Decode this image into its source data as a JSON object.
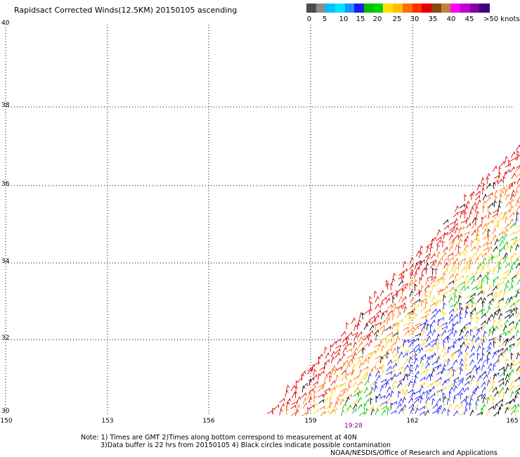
{
  "title": "Rapidsact Corrected Winds(12.5KM) 20150105 ascending",
  "legend": {
    "colors": [
      "#4d4d4d",
      "#8c8c8c",
      "#00bfff",
      "#00e5ff",
      "#1e90ff",
      "#1c1cf0",
      "#00c000",
      "#00d200",
      "#ffe000",
      "#ffc000",
      "#ff6c00",
      "#ff3000",
      "#e00000",
      "#8b4513",
      "#c08040",
      "#ff00ff",
      "#c000d0",
      "#8000a0",
      "#400080"
    ],
    "labels": [
      "0",
      "5",
      "10",
      "15",
      "20",
      "25",
      "30",
      "35",
      "40",
      "45",
      ">50 knots"
    ]
  },
  "y_labels": [
    "40",
    "38",
    "36",
    "34",
    "32",
    "30"
  ],
  "x_labels": [
    "150",
    "153",
    "156",
    "159",
    "162",
    "165"
  ],
  "pass_time": "19:28",
  "notes": {
    "line1": "Note: 1) Times are GMT 2)Times along bottom correspond to measurement at 40N",
    "line2": "3)Data buffer is 22 hrs from 20150105 4) Black circles indicate possible contamination",
    "credit": "NOAA/NESDIS/Office of Research and Applications"
  },
  "wind_colors": {
    "red": "#e00000",
    "orange": "#ff7000",
    "yellow": "#ffd000",
    "green": "#00c000",
    "blue": "#1c1cf0",
    "black": "#000000"
  }
}
